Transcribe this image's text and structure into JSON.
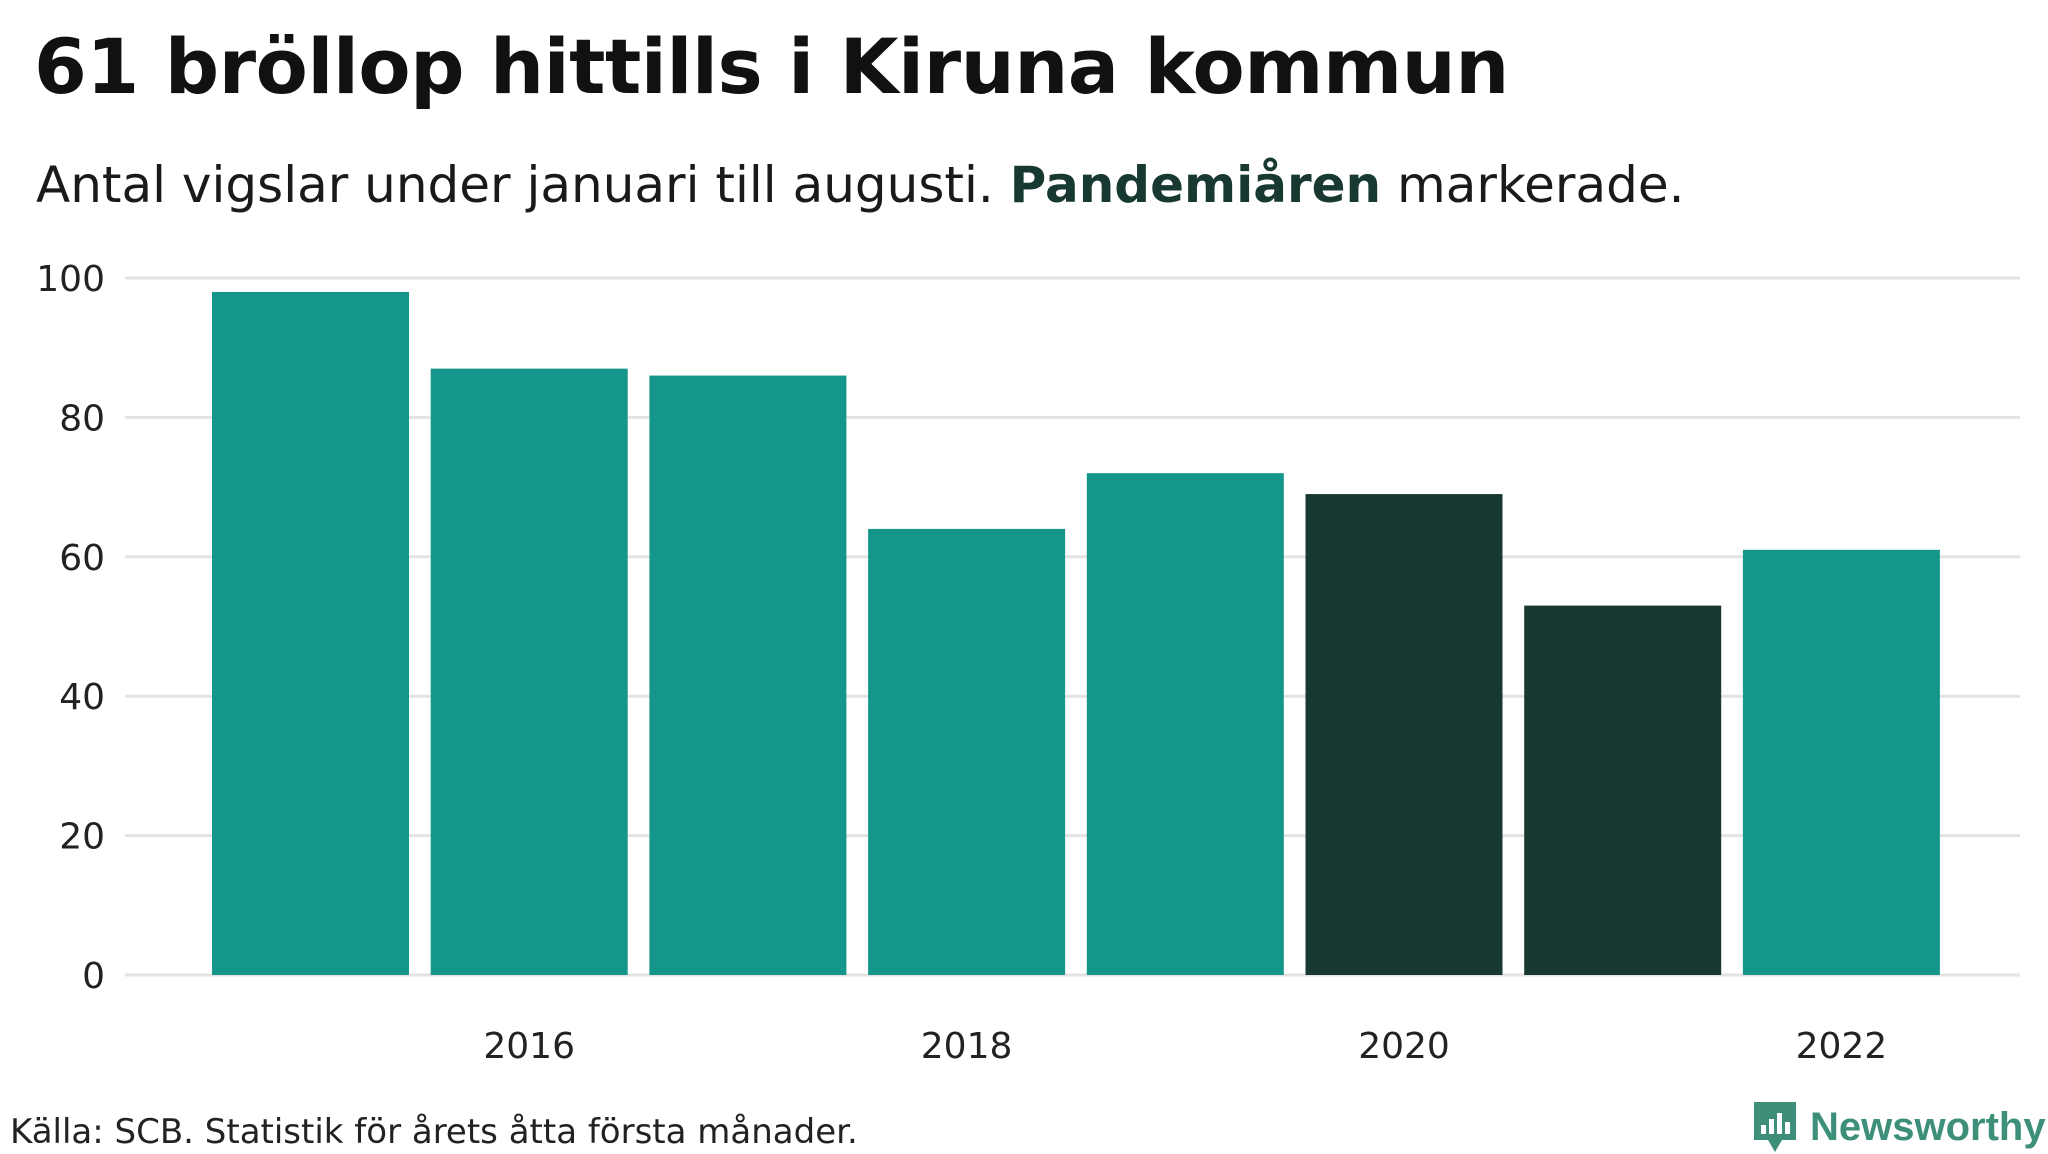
{
  "header": {
    "title": "61 bröllop hittills i Kiruna kommun",
    "subtitle_before": "Antal vigslar under januari till augusti. ",
    "subtitle_highlight": "Pandemiåren",
    "subtitle_after": " markerade."
  },
  "footer": {
    "source": "Källa: SCB. Statistik för årets åtta första månader.",
    "brand": "Newsworthy"
  },
  "colors": {
    "normal": "#14968a",
    "highlight": "#183832",
    "highlight_text": "#183832",
    "brand": "#3e8f7a"
  },
  "icons": {
    "logo": "newsworthy-logo-icon"
  },
  "chart_data": {
    "type": "bar",
    "title": "61 bröllop hittills i Kiruna kommun",
    "subtitle": "Antal vigslar under januari till augusti. Pandemiåren markerade.",
    "xlabel": "",
    "ylabel": "",
    "categories": [
      "2015",
      "2016",
      "2017",
      "2018",
      "2019",
      "2020",
      "2021",
      "2022"
    ],
    "values": [
      98,
      87,
      86,
      64,
      72,
      69,
      53,
      61
    ],
    "highlighted": [
      "2020",
      "2021"
    ],
    "ylim": [
      0,
      100
    ],
    "yticks": [
      "0",
      "20",
      "40",
      "60",
      "80",
      "100"
    ],
    "xticks": [
      "2016",
      "2018",
      "2020",
      "2022"
    ],
    "grid": true,
    "legend": "none"
  }
}
